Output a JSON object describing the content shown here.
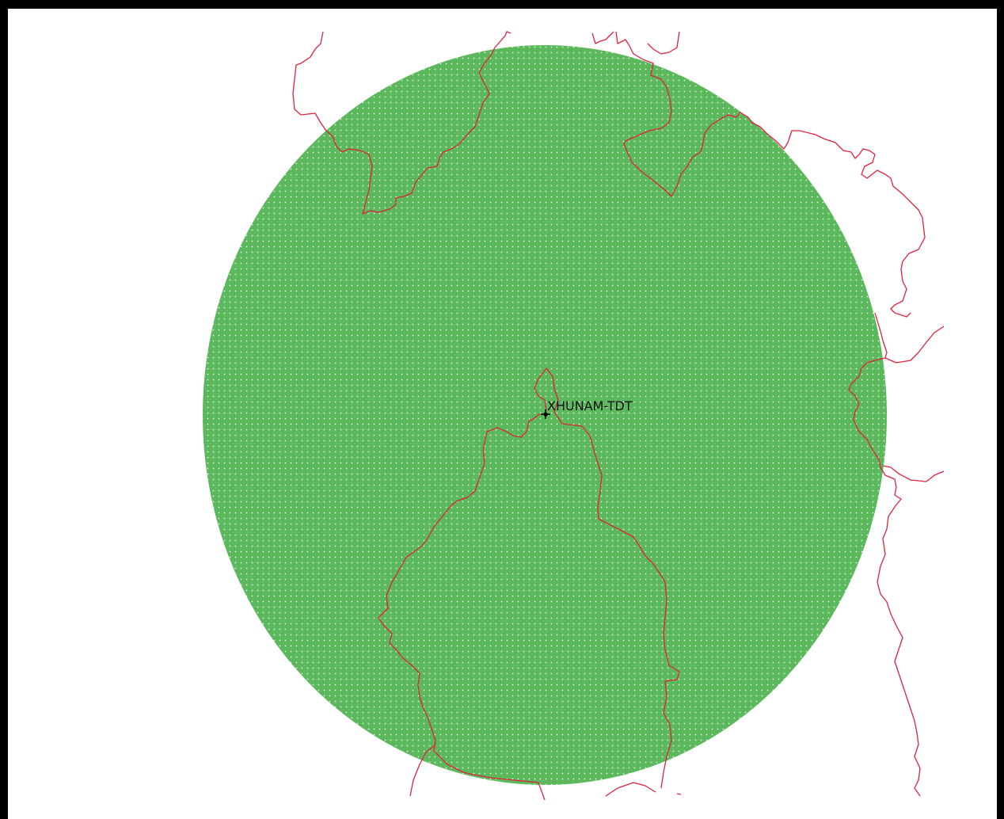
{
  "map": {
    "station_label": "XHUNAM-TDT",
    "coverage_color": "#5cb85c",
    "coverage_dot_color": "#e6f5e0",
    "boundary_color": "#e0223c",
    "station_marker_color": "#000000"
  }
}
